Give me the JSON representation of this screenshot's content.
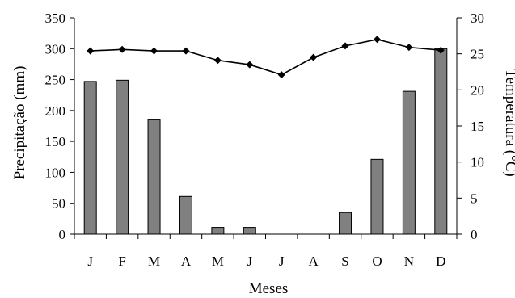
{
  "chart_data": {
    "type": "bar+line",
    "categories": [
      "J",
      "F",
      "M",
      "A",
      "M",
      "J",
      "J",
      "A",
      "S",
      "O",
      "N",
      "D"
    ],
    "xlabel": "Meses",
    "bars": {
      "axis": "left",
      "ylabel": "Precipitação (mm)",
      "ylim": [
        0,
        350
      ],
      "ticks": [
        0,
        50,
        100,
        150,
        200,
        250,
        300,
        350
      ],
      "values": [
        247,
        249,
        186,
        61,
        11,
        11,
        0,
        0,
        35,
        121,
        231,
        300
      ],
      "color": "#808080"
    },
    "line": {
      "axis": "right",
      "ylabel": "Temperatura (°C)",
      "ylim": [
        0,
        30
      ],
      "ticks": [
        0,
        5,
        10,
        15,
        20,
        25,
        30
      ],
      "values": [
        25.4,
        25.6,
        25.4,
        25.4,
        24.1,
        23.5,
        22.1,
        24.5,
        26.1,
        27.0,
        25.9,
        25.5
      ],
      "color": "#000000"
    },
    "grid": false,
    "legend": "none"
  }
}
